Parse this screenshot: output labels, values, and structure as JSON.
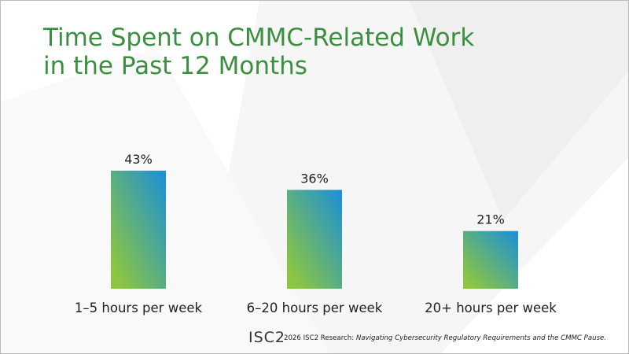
{
  "chart_data": {
    "type": "bar",
    "title": [
      "Time Spent on CMMC-Related Work",
      "in the Past 12 Months"
    ],
    "categories": [
      "1–5 hours per week",
      "6–20 hours per week",
      "20+ hours per week"
    ],
    "values": [
      43,
      36,
      21
    ],
    "value_labels": [
      "43%",
      "36%",
      "21%"
    ],
    "colors": [
      "#8dc63f",
      "#1a8fd8"
    ]
  },
  "footer": {
    "logo": "ISC2",
    "source": "2026 ISC2 Research: ",
    "source_title": "Navigating Cybersecurity Regulatory Requirements and the CMMC Pause."
  }
}
